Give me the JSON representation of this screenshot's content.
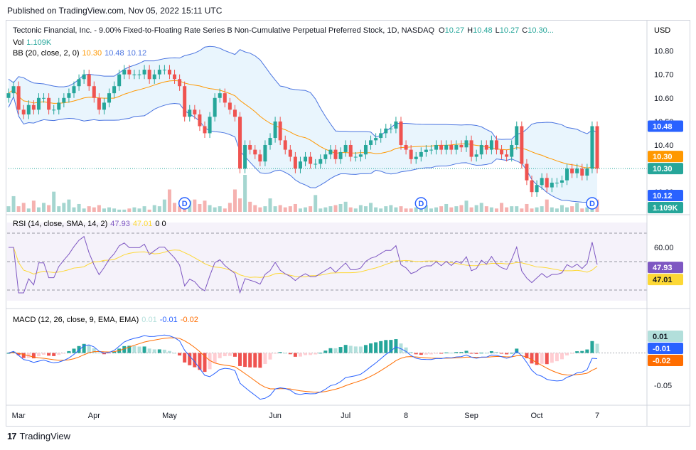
{
  "caption": "Published on TradingView.com, Nov 05, 2022 15:11 UTC",
  "brand": "TradingView",
  "brand_icon": "tradingview-logo-icon",
  "colors": {
    "up": "#26a69a",
    "down": "#ef5350",
    "bb_basis": "#ff9800",
    "bb_band": "#4a74e0",
    "bb_fill": "#e3f2fd",
    "rsi_line": "#7e57c2",
    "rsi_ma": "#fdd835",
    "rsi_fill": "#ede7f6",
    "macd_line": "#2962ff",
    "signal_line": "#ff6d00"
  },
  "header": {
    "title": "Tectonic Financial, Inc. - 9.00% Fixed-to-Floating Rate Series B Non-Cumulative Perpetual Preferred Stock, 1D, NASDAQ",
    "o_label": "O",
    "o": "10.27",
    "h_label": "H",
    "h": "10.48",
    "l_label": "L",
    "l": "10.27",
    "c_label": "C",
    "c": "10.30...",
    "currency": "USD"
  },
  "legend": {
    "vol_label": "Vol",
    "vol_value": "1.109K",
    "bb_label": "BB (20, close, 2, 0)",
    "bb_basis": "10.30",
    "bb_upper": "10.48",
    "bb_lower": "10.12",
    "rsi_label": "RSI (14, close, SMA, 14, 2)",
    "rsi_value": "47.93",
    "rsi_ma": "47.01",
    "rsi_extra": "0 0",
    "macd_label": "MACD (12, 26, close, 9, EMA, EMA)",
    "macd_hist": "0.01",
    "macd_line": "-0.01",
    "macd_signal": "-0.02"
  },
  "price_badges": {
    "upper": "10.48",
    "basis": "10.30",
    "close": "10.30",
    "lower": "10.12",
    "volume": "1.109K"
  },
  "rsi_badges": {
    "rsi": "47.93",
    "ma": "47.01"
  },
  "macd_badges": {
    "hist": "0.01",
    "macd": "-0.01",
    "signal": "-0.02"
  },
  "dividend_marker": "D",
  "chart_data": [
    {
      "type": "candlestick",
      "title": "Tectonic Financial, Inc. - 9.00% Fixed-to-Floating Rate Series B Non-Cumulative Perpetual Preferred Stock, 1D, NASDAQ",
      "x_tick_labels": [
        "Mar",
        "Apr",
        "May",
        "Jun",
        "Jul",
        "8",
        "Sep",
        "Oct",
        "7"
      ],
      "x_tick_index": [
        2,
        17,
        32,
        53,
        67,
        79,
        92,
        105,
        117
      ],
      "y_ticks": [
        10.2,
        10.3,
        10.4,
        10.5,
        10.6,
        10.7,
        10.8
      ],
      "y_tick_labels": [
        "10.20",
        "10.30",
        "10.40",
        "10.50",
        "10.60",
        "10.70",
        "10.80"
      ],
      "ylim": [
        10.11,
        10.85
      ],
      "series": [
        {
          "name": "close",
          "values": [
            10.62,
            10.65,
            10.55,
            10.53,
            10.57,
            10.55,
            10.6,
            10.6,
            10.55,
            10.55,
            10.58,
            10.6,
            10.62,
            10.65,
            10.68,
            10.7,
            10.65,
            10.6,
            10.55,
            10.58,
            10.62,
            10.65,
            10.7,
            10.72,
            10.7,
            10.7,
            10.7,
            10.72,
            10.68,
            10.7,
            10.72,
            10.72,
            10.7,
            10.68,
            10.65,
            10.52,
            10.55,
            10.53,
            10.48,
            10.45,
            10.52,
            10.6,
            10.62,
            10.58,
            10.55,
            10.52,
            10.3,
            10.4,
            10.38,
            10.36,
            10.33,
            10.4,
            10.43,
            10.5,
            10.42,
            10.38,
            10.35,
            10.3,
            10.33,
            10.35,
            10.32,
            10.32,
            10.34,
            10.36,
            10.38,
            10.34,
            10.37,
            10.4,
            10.35,
            10.35,
            10.36,
            10.4,
            10.42,
            10.43,
            10.45,
            10.47,
            10.47,
            10.5,
            10.4,
            10.38,
            10.34,
            10.35,
            10.37,
            10.38,
            10.38,
            10.4,
            10.38,
            10.4,
            10.38,
            10.4,
            10.39,
            10.42,
            10.35,
            10.36,
            10.4,
            10.38,
            10.42,
            10.38,
            10.36,
            10.35,
            10.4,
            10.48,
            10.32,
            10.25,
            10.2,
            10.23,
            10.26,
            10.22,
            10.24,
            10.24,
            10.25,
            10.3,
            10.28,
            10.3,
            10.27,
            10.3,
            10.48,
            10.3
          ]
        },
        {
          "name": "volume",
          "values": [
            0.5,
            1.4,
            0.5,
            0.8,
            0.3,
            1.0,
            0.4,
            0.8,
            0.6,
            1.8,
            0.5,
            0.8,
            1.1,
            0.4,
            0.7,
            0.3,
            0.5,
            0.4,
            0.6,
            0.3,
            0.4,
            0.3,
            0.2,
            0.2,
            0.3,
            0.4,
            0.3,
            0.5,
            0.2,
            0.6,
            0.5,
            1.1,
            2.0,
            0.8,
            0.5,
            0.4,
            1.0,
            1.1,
            0.7,
            1.0,
            0.6,
            0.4,
            0.5,
            0.3,
            0.8,
            2.0,
            1.2,
            3.3,
            0.9,
            0.6,
            0.4,
            0.5,
            1.2,
            0.5,
            0.6,
            0.4,
            0.5,
            0.7,
            0.3,
            0.4,
            0.5,
            1.5,
            0.3,
            0.4,
            0.5,
            0.6,
            0.7,
            0.9,
            0.4,
            0.3,
            0.6,
            0.5,
            0.8,
            0.4,
            0.3,
            0.5,
            0.6,
            0.4,
            0.5,
            0.3,
            0.3,
            0.4,
            0.4,
            0.6,
            0.3,
            0.4,
            0.5,
            0.7,
            0.4,
            0.5,
            0.6,
            1.0,
            0.4,
            0.6,
            0.8,
            0.5,
            0.4,
            0.3,
            0.8,
            0.4,
            0.5,
            0.5,
            0.3,
            0.7,
            0.3,
            0.4,
            0.5,
            1.1,
            0.4,
            0.3,
            0.6,
            0.4,
            0.5,
            0.8,
            0.3,
            0.4,
            0.6,
            1.1
          ]
        }
      ],
      "bollinger": {
        "basis_last": 10.3,
        "upper_last": 10.48,
        "lower_last": 10.12
      },
      "dividends_at_index": [
        35,
        82,
        116
      ]
    },
    {
      "type": "line",
      "title": "RSI (14, close, SMA, 14, 2)",
      "y_ticks": [
        60
      ],
      "y_tick_labels": [
        "60.00"
      ],
      "bands": [
        70,
        50,
        30
      ],
      "ylim": [
        20,
        80
      ],
      "last_value": 47.93,
      "ma_last": 47.01
    },
    {
      "type": "bar",
      "title": "MACD (12, 26, close, 9, EMA, EMA)",
      "y_ticks": [
        -0.05
      ],
      "y_tick_labels": [
        "-0.05"
      ],
      "ylim": [
        -0.075,
        0.04
      ],
      "hist_last": 0.01,
      "macd_last": -0.01,
      "signal_last": -0.02
    }
  ]
}
